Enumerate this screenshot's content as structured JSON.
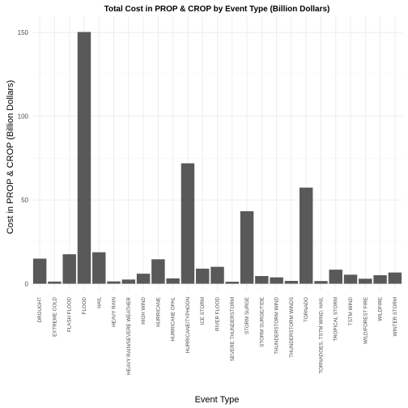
{
  "chart_data": {
    "type": "bar",
    "title": "Total Cost in PROP & CROP by Event Type (Billion Dollars)",
    "xlabel": "Event Type",
    "ylabel": "Cost in PROP & CROP (Billion Dollars)",
    "ylim": [
      0,
      157
    ],
    "yticks": [
      0,
      50,
      100,
      150
    ],
    "grid": true,
    "bar_color": "#595959",
    "categories": [
      "DROUGHT",
      "EXTREME COLD",
      "FLASH FLOOD",
      "FLOOD",
      "HAIL",
      "HEAVY RAIN",
      "HEAVY RAIN/SEVERE WEATHER",
      "HIGH WIND",
      "HURRICANE",
      "HURRICANE OPAL",
      "HURRICANE/TYPHOON",
      "ICE STORM",
      "RIVER FLOOD",
      "SEVERE THUNDERSTORM",
      "STORM SURGE",
      "STORM SURGE/TIDE",
      "THUNDERSTORM WIND",
      "THUNDERSTORM WINDS",
      "TORNADO",
      "TORNADOES, TSTM WIND, HAIL",
      "TROPICAL STORM",
      "TSTM WIND",
      "WILD/FOREST FIRE",
      "WILDFIRE",
      "WINTER STORM"
    ],
    "values": [
      15.0,
      1.3,
      17.6,
      150.3,
      18.8,
      1.4,
      2.5,
      6.0,
      14.6,
      3.2,
      71.9,
      9.0,
      10.1,
      1.2,
      43.3,
      4.6,
      3.8,
      1.7,
      57.4,
      1.6,
      8.4,
      5.4,
      3.0,
      5.1,
      6.7
    ]
  }
}
